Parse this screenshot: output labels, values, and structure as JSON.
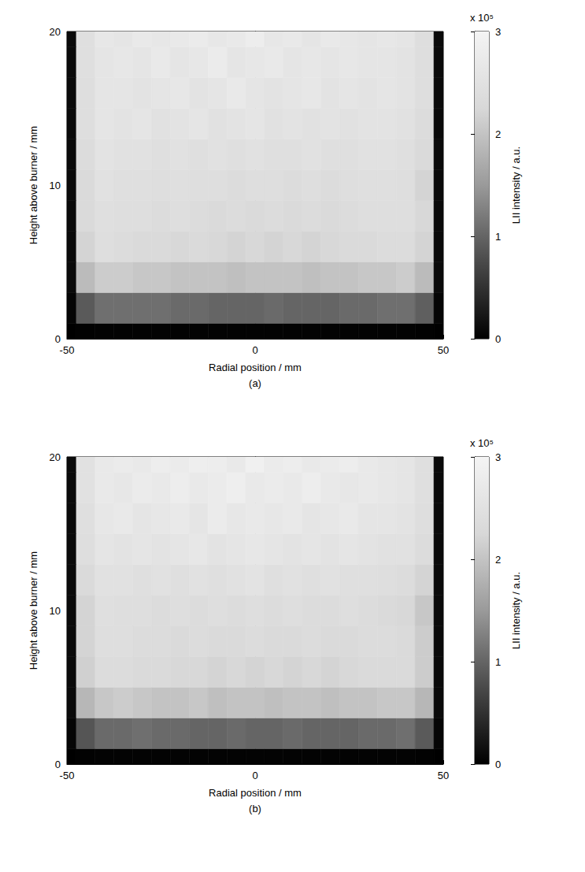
{
  "chart_data": [
    {
      "type": "heatmap",
      "caption": "(a)",
      "xlabel": "Radial position / mm",
      "ylabel": "Height above burner / mm",
      "xlim": [
        -50,
        50
      ],
      "xticks": [
        -50,
        0,
        50
      ],
      "ylim": [
        0,
        20
      ],
      "yticks": [
        0,
        10,
        20
      ],
      "annotation": "x 10⁵",
      "colorbar": {
        "label": "LII intensity / a.u.",
        "range": [
          0,
          3
        ],
        "ticks": [
          0,
          1,
          2,
          3
        ]
      },
      "x": [
        -50,
        -45,
        -40,
        -35,
        -30,
        -25,
        -20,
        -15,
        -10,
        -5,
        0,
        5,
        10,
        15,
        20,
        25,
        30,
        35,
        40,
        45,
        50
      ],
      "y": [
        0,
        2,
        4,
        6,
        8,
        10,
        12,
        14,
        16,
        18,
        20
      ],
      "cells": [
        [
          0.0,
          0.02,
          0.03,
          0.03,
          0.03,
          0.03,
          0.03,
          0.03,
          0.03,
          0.03,
          0.03,
          0.03,
          0.03,
          0.03,
          0.03,
          0.03,
          0.03,
          0.03,
          0.03,
          0.02,
          0.0
        ],
        [
          0.05,
          0.9,
          1.1,
          1.1,
          1.1,
          1.1,
          1.05,
          1.05,
          1.0,
          1.0,
          1.0,
          1.05,
          1.0,
          1.0,
          1.0,
          1.05,
          1.05,
          1.1,
          1.1,
          0.95,
          0.05
        ],
        [
          0.1,
          1.9,
          2.1,
          2.1,
          2.05,
          2.05,
          2.0,
          2.0,
          2.0,
          1.95,
          2.0,
          2.0,
          2.0,
          1.95,
          2.0,
          2.0,
          2.05,
          2.05,
          2.1,
          1.9,
          0.1
        ],
        [
          0.1,
          2.2,
          2.4,
          2.35,
          2.3,
          2.3,
          2.25,
          2.3,
          2.25,
          2.2,
          2.25,
          2.2,
          2.25,
          2.2,
          2.25,
          2.3,
          2.3,
          2.35,
          2.35,
          2.2,
          0.1
        ],
        [
          0.1,
          2.3,
          2.45,
          2.4,
          2.4,
          2.35,
          2.4,
          2.35,
          2.3,
          2.35,
          2.3,
          2.35,
          2.3,
          2.35,
          2.3,
          2.35,
          2.4,
          2.4,
          2.4,
          2.25,
          0.1
        ],
        [
          0.1,
          2.3,
          2.5,
          2.45,
          2.45,
          2.4,
          2.45,
          2.4,
          2.4,
          2.35,
          2.4,
          2.4,
          2.35,
          2.4,
          2.35,
          2.4,
          2.45,
          2.45,
          2.4,
          2.2,
          0.1
        ],
        [
          0.1,
          2.35,
          2.55,
          2.5,
          2.5,
          2.45,
          2.5,
          2.45,
          2.5,
          2.45,
          2.5,
          2.45,
          2.45,
          2.5,
          2.45,
          2.45,
          2.5,
          2.5,
          2.45,
          2.3,
          0.1
        ],
        [
          0.1,
          2.4,
          2.6,
          2.55,
          2.6,
          2.5,
          2.55,
          2.6,
          2.5,
          2.55,
          2.6,
          2.5,
          2.55,
          2.5,
          2.55,
          2.5,
          2.55,
          2.55,
          2.5,
          2.35,
          0.1
        ],
        [
          0.1,
          2.4,
          2.6,
          2.6,
          2.55,
          2.6,
          2.65,
          2.55,
          2.6,
          2.7,
          2.6,
          2.55,
          2.6,
          2.65,
          2.55,
          2.6,
          2.55,
          2.6,
          2.55,
          2.4,
          0.1
        ],
        [
          0.1,
          2.45,
          2.6,
          2.65,
          2.6,
          2.7,
          2.6,
          2.65,
          2.75,
          2.6,
          2.65,
          2.7,
          2.6,
          2.65,
          2.6,
          2.65,
          2.6,
          2.6,
          2.55,
          2.4,
          0.1
        ],
        [
          0.1,
          2.45,
          2.65,
          2.6,
          2.7,
          2.65,
          2.7,
          2.75,
          2.65,
          2.7,
          2.8,
          2.65,
          2.7,
          2.6,
          2.7,
          2.65,
          2.6,
          2.65,
          2.6,
          2.4,
          0.1
        ]
      ]
    },
    {
      "type": "heatmap",
      "caption": "(b)",
      "xlabel": "Radial position / mm",
      "ylabel": "Height above burner / mm",
      "xlim": [
        -50,
        50
      ],
      "xticks": [
        -50,
        0,
        50
      ],
      "ylim": [
        0,
        20
      ],
      "yticks": [
        0,
        10,
        20
      ],
      "annotation": "x 10⁵",
      "colorbar": {
        "label": "LII intensity / a.u.",
        "range": [
          0,
          3
        ],
        "ticks": [
          0,
          1,
          2,
          3
        ]
      },
      "x": [
        -50,
        -45,
        -40,
        -35,
        -30,
        -25,
        -20,
        -15,
        -10,
        -5,
        0,
        5,
        10,
        15,
        20,
        25,
        30,
        35,
        40,
        45,
        50
      ],
      "y": [
        0,
        2,
        4,
        6,
        8,
        10,
        12,
        14,
        16,
        18,
        20
      ],
      "cells": [
        [
          0.0,
          0.02,
          0.03,
          0.03,
          0.03,
          0.03,
          0.03,
          0.03,
          0.03,
          0.03,
          0.03,
          0.03,
          0.03,
          0.03,
          0.03,
          0.03,
          0.03,
          0.03,
          0.03,
          0.02,
          0.0
        ],
        [
          0.05,
          0.85,
          1.05,
          1.05,
          1.1,
          1.05,
          1.05,
          1.0,
          1.0,
          1.05,
          1.0,
          1.0,
          1.05,
          1.0,
          1.0,
          1.0,
          1.05,
          1.05,
          1.1,
          0.9,
          0.05
        ],
        [
          0.1,
          1.85,
          2.05,
          2.1,
          2.05,
          2.0,
          2.0,
          2.05,
          1.95,
          2.0,
          2.0,
          1.95,
          2.0,
          2.0,
          1.95,
          2.0,
          2.0,
          2.05,
          2.05,
          1.85,
          0.1
        ],
        [
          0.1,
          2.15,
          2.35,
          2.35,
          2.3,
          2.3,
          2.25,
          2.25,
          2.2,
          2.25,
          2.2,
          2.25,
          2.2,
          2.25,
          2.2,
          2.25,
          2.3,
          2.3,
          2.3,
          2.1,
          0.1
        ],
        [
          0.1,
          2.2,
          2.4,
          2.4,
          2.35,
          2.35,
          2.3,
          2.35,
          2.3,
          2.3,
          2.35,
          2.3,
          2.3,
          2.35,
          2.3,
          2.3,
          2.35,
          2.35,
          2.3,
          2.1,
          0.1
        ],
        [
          0.1,
          2.2,
          2.45,
          2.4,
          2.4,
          2.35,
          2.4,
          2.35,
          2.4,
          2.35,
          2.4,
          2.35,
          2.4,
          2.35,
          2.35,
          2.4,
          2.35,
          2.3,
          2.25,
          2.05,
          0.1
        ],
        [
          0.1,
          2.3,
          2.5,
          2.5,
          2.45,
          2.5,
          2.45,
          2.5,
          2.45,
          2.5,
          2.55,
          2.45,
          2.5,
          2.45,
          2.5,
          2.45,
          2.45,
          2.4,
          2.35,
          2.2,
          0.1
        ],
        [
          0.1,
          2.4,
          2.6,
          2.55,
          2.6,
          2.55,
          2.6,
          2.65,
          2.55,
          2.6,
          2.65,
          2.6,
          2.55,
          2.6,
          2.55,
          2.6,
          2.55,
          2.5,
          2.5,
          2.35,
          0.1
        ],
        [
          0.1,
          2.45,
          2.65,
          2.7,
          2.6,
          2.65,
          2.7,
          2.6,
          2.75,
          2.65,
          2.7,
          2.65,
          2.7,
          2.6,
          2.65,
          2.7,
          2.6,
          2.6,
          2.55,
          2.4,
          0.1
        ],
        [
          0.1,
          2.5,
          2.7,
          2.65,
          2.75,
          2.7,
          2.8,
          2.7,
          2.75,
          2.85,
          2.7,
          2.75,
          2.7,
          2.8,
          2.7,
          2.65,
          2.7,
          2.65,
          2.6,
          2.45,
          0.1
        ],
        [
          0.1,
          2.5,
          2.7,
          2.75,
          2.7,
          2.8,
          2.75,
          2.85,
          2.8,
          2.7,
          2.9,
          2.75,
          2.8,
          2.7,
          2.75,
          2.8,
          2.7,
          2.65,
          2.6,
          2.45,
          0.1
        ]
      ]
    }
  ]
}
